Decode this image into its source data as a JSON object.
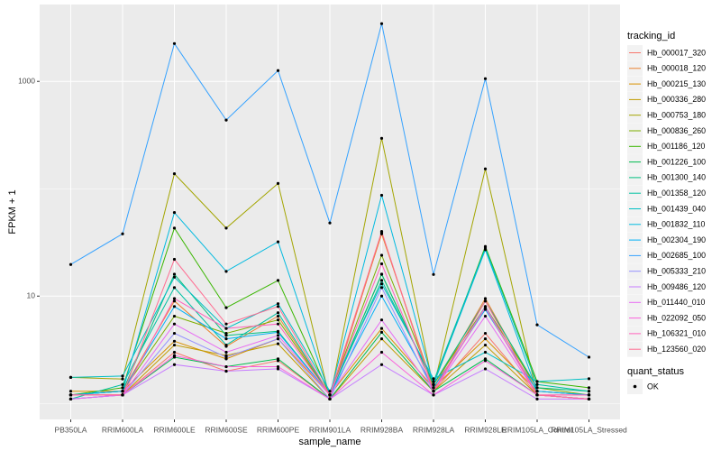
{
  "chart_data": {
    "type": "line",
    "log_y": true,
    "x_label": "sample_name",
    "y_label": "FPKM + 1",
    "legend_title": "tracking_id",
    "legend2_title": "quant_status",
    "legend2_items": [
      "OK"
    ],
    "categories": [
      "PB350LA",
      "RRIM600LA",
      "RRIM600LE",
      "RRIM600SE",
      "RRIM600PE",
      "RRIM901LA",
      "RRIM928BA",
      "RRIM928LA",
      "RRIM928LE",
      "RRIM105LA_Control",
      "RRIM105LA_Stressed"
    ],
    "ylim": [
      0.71,
      5200
    ],
    "yticks": [
      10,
      1000
    ],
    "y_minor_grid": [
      1,
      100
    ],
    "grid": true,
    "series": [
      {
        "name": "Hb_000017_320",
        "color": "#F8766D",
        "values": [
          1.2,
          1.2,
          3.0,
          2.0,
          2.5,
          1.1,
          39,
          1.3,
          4.5,
          1.2,
          1.2
        ]
      },
      {
        "name": "Hb_000018_120",
        "color": "#EA8331",
        "values": [
          1.2,
          1.3,
          9.0,
          3.4,
          6.5,
          1.2,
          38,
          1.4,
          9.5,
          1.3,
          1.2
        ]
      },
      {
        "name": "Hb_000215_130",
        "color": "#D89000",
        "values": [
          1.3,
          1.3,
          3.8,
          2.6,
          4.0,
          1.2,
          5.0,
          1.4,
          4.0,
          1.3,
          1.2
        ]
      },
      {
        "name": "Hb_000336_280",
        "color": "#C09B00",
        "values": [
          1.2,
          1.2,
          3.5,
          2.8,
          3.6,
          1.1,
          4.0,
          1.3,
          3.5,
          1.2,
          1.1
        ]
      },
      {
        "name": "Hb_000753_180",
        "color": "#A3A500",
        "values": [
          1.75,
          1.69,
          138,
          43,
          112,
          1.1,
          295,
          1.4,
          153,
          1.2,
          1.1
        ]
      },
      {
        "name": "Hb_000836_260",
        "color": "#7CAE00",
        "values": [
          1.2,
          1.3,
          6.5,
          4.5,
          6.0,
          1.2,
          24,
          1.5,
          8.0,
          1.4,
          1.2
        ]
      },
      {
        "name": "Hb_001186_120",
        "color": "#39B600",
        "values": [
          1.2,
          1.4,
          43,
          7.8,
          14,
          1.2,
          16,
          1.5,
          29,
          1.6,
          1.4
        ]
      },
      {
        "name": "Hb_001226_100",
        "color": "#00BB4E",
        "values": [
          1.1,
          1.2,
          2.7,
          2.2,
          2.6,
          1.1,
          4.6,
          1.3,
          2.6,
          1.2,
          1.1
        ]
      },
      {
        "name": "Hb_001300_140",
        "color": "#00BF7D",
        "values": [
          1.2,
          1.3,
          16,
          4.3,
          4.7,
          1.2,
          16,
          1.5,
          9.0,
          1.4,
          1.3
        ]
      },
      {
        "name": "Hb_001358_120",
        "color": "#00C1A3",
        "values": [
          1.1,
          1.5,
          12,
          3.5,
          7.0,
          1.2,
          14,
          1.6,
          28,
          1.5,
          1.3
        ]
      },
      {
        "name": "Hb_001439_040",
        "color": "#00BFC4",
        "values": [
          1.75,
          1.8,
          15,
          5.0,
          8.5,
          1.3,
          13,
          1.7,
          3.0,
          1.6,
          1.7
        ]
      },
      {
        "name": "Hb_001832_110",
        "color": "#00BAE0",
        "values": [
          1.2,
          1.3,
          60,
          17,
          32,
          1.2,
          87,
          1.5,
          27,
          1.3,
          1.2
        ]
      },
      {
        "name": "Hb_002304_190",
        "color": "#00B0F6",
        "values": [
          1.2,
          1.3,
          8.0,
          4.0,
          4.6,
          1.2,
          10,
          1.4,
          7.5,
          1.3,
          1.2
        ]
      },
      {
        "name": "Hb_002685_100",
        "color": "#35A2FF",
        "values": [
          19.7,
          38,
          2250,
          436,
          1260,
          48,
          3450,
          15.9,
          1060,
          5.4,
          2.7
        ]
      },
      {
        "name": "Hb_005333_210",
        "color": "#9590FF",
        "values": [
          1.1,
          1.2,
          4.5,
          2.7,
          4.0,
          1.1,
          12,
          1.3,
          8.0,
          1.2,
          1.1
        ]
      },
      {
        "name": "Hb_009486_120",
        "color": "#C77CFF",
        "values": [
          1.1,
          1.2,
          2.3,
          2.0,
          2.1,
          1.1,
          2.3,
          1.2,
          2.1,
          1.1,
          1.1
        ]
      },
      {
        "name": "Hb_011440_010",
        "color": "#E76BF3",
        "values": [
          1.1,
          1.2,
          5.5,
          3.0,
          4.3,
          1.2,
          6.0,
          1.3,
          6.5,
          1.2,
          1.1
        ]
      },
      {
        "name": "Hb_022092_050",
        "color": "#FA62DB",
        "values": [
          1.2,
          1.2,
          2.8,
          2.2,
          2.2,
          1.1,
          3.0,
          1.2,
          2.5,
          1.2,
          1.1
        ]
      },
      {
        "name": "Hb_106321_010",
        "color": "#FF62BC",
        "values": [
          1.2,
          1.2,
          9.5,
          5.0,
          5.5,
          1.2,
          20,
          1.3,
          7.8,
          1.2,
          1.2
        ]
      },
      {
        "name": "Hb_123560_020",
        "color": "#FF6C91",
        "values": [
          1.2,
          1.2,
          22,
          5.5,
          8.0,
          1.2,
          40,
          1.3,
          9.0,
          1.2,
          1.1
        ]
      }
    ]
  }
}
